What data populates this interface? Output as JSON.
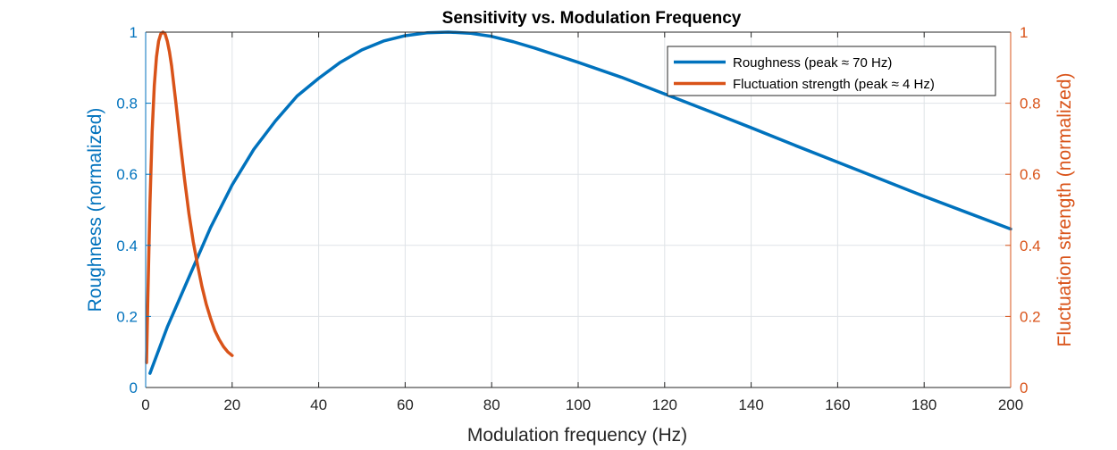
{
  "colors": {
    "left_axis": "#0072BD",
    "right_axis": "#D95319",
    "text": "#262626",
    "grid": "#dfe3e7",
    "box": "#262626"
  },
  "chart_data": {
    "type": "line",
    "title": "Sensitivity vs. Modulation Frequency",
    "xlabel": "Modulation frequency (Hz)",
    "ylabel_left": "Roughness (normalized)",
    "ylabel_right": "Fluctuation strength (normalized)",
    "xlim": [
      0,
      200
    ],
    "ylim_left": [
      0,
      1
    ],
    "ylim_right": [
      0,
      1
    ],
    "x_ticks": [
      "0",
      "20",
      "40",
      "60",
      "80",
      "100",
      "120",
      "140",
      "160",
      "180",
      "200"
    ],
    "y_ticks_left": [
      "0",
      "0.2",
      "0.4",
      "0.6",
      "0.8",
      "1"
    ],
    "y_ticks_right": [
      "0",
      "0.2",
      "0.4",
      "0.6",
      "0.8",
      "1"
    ],
    "grid": true,
    "legend_position": "top-right",
    "series": [
      {
        "name": "Roughness (peak ≈ 70 Hz)",
        "axis": "left",
        "color": "#0072BD",
        "x": [
          1,
          5,
          10,
          15,
          20,
          25,
          30,
          35,
          40,
          45,
          50,
          55,
          60,
          65,
          70,
          75,
          80,
          85,
          90,
          95,
          100,
          110,
          120,
          130,
          140,
          150,
          160,
          170,
          180,
          190,
          200
        ],
        "y": [
          0.04,
          0.17,
          0.31,
          0.45,
          0.57,
          0.67,
          0.75,
          0.82,
          0.87,
          0.915,
          0.95,
          0.975,
          0.99,
          0.998,
          1.0,
          0.997,
          0.988,
          0.973,
          0.955,
          0.935,
          0.915,
          0.873,
          0.826,
          0.779,
          0.731,
          0.682,
          0.634,
          0.586,
          0.538,
          0.492,
          0.446
        ]
      },
      {
        "name": "Fluctuation strength (peak ≈ 4 Hz)",
        "axis": "right",
        "color": "#D95319",
        "x": [
          0.2,
          0.5,
          1,
          1.5,
          2,
          2.5,
          3,
          3.5,
          4,
          4.5,
          5,
          5.5,
          6,
          7,
          8,
          9,
          10,
          11,
          12,
          13,
          14,
          15,
          16,
          17,
          18,
          19,
          20
        ],
        "y": [
          0.07,
          0.25,
          0.52,
          0.72,
          0.85,
          0.93,
          0.975,
          0.995,
          1.0,
          0.995,
          0.975,
          0.945,
          0.905,
          0.8,
          0.69,
          0.585,
          0.49,
          0.41,
          0.345,
          0.285,
          0.235,
          0.195,
          0.16,
          0.135,
          0.115,
          0.1,
          0.09
        ]
      }
    ]
  }
}
